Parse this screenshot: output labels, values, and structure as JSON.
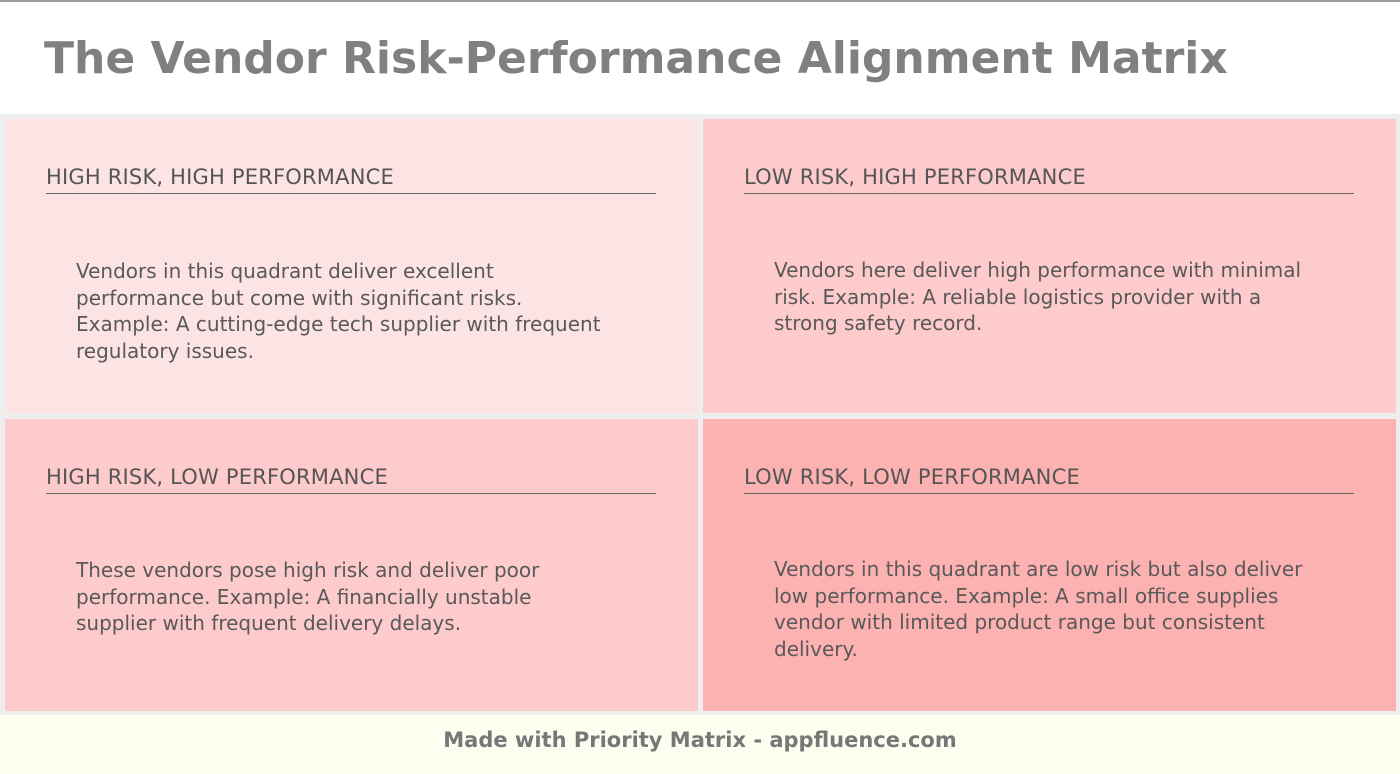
{
  "title": "The Vendor Risk-Performance Alignment Matrix",
  "quadrants": [
    {
      "title": "HIGH RISK, HIGH PERFORMANCE",
      "description": "Vendors in this quadrant deliver excellent performance but come with significant risks. Example: A cutting-edge tech supplier with frequent regulatory issues.",
      "color": "#fde4e4"
    },
    {
      "title": "LOW RISK, HIGH PERFORMANCE",
      "description": "Vendors here deliver high performance with minimal risk. Example: A reliable logistics provider with a strong safety record.",
      "color": "#fdcbcb"
    },
    {
      "title": "HIGH RISK, LOW PERFORMANCE",
      "description": "These vendors pose high risk and deliver poor performance. Example: A financially unstable supplier with frequent delivery delays.",
      "color": "#fdcbcb"
    },
    {
      "title": "LOW RISK, LOW PERFORMANCE",
      "description": "Vendors in this quadrant are low risk but also deliver low performance. Example: A small office supplies vendor with limited product range but consistent delivery.",
      "color": "#fdb2b2"
    }
  ],
  "footer": "Made with Priority Matrix - appfluence.com"
}
